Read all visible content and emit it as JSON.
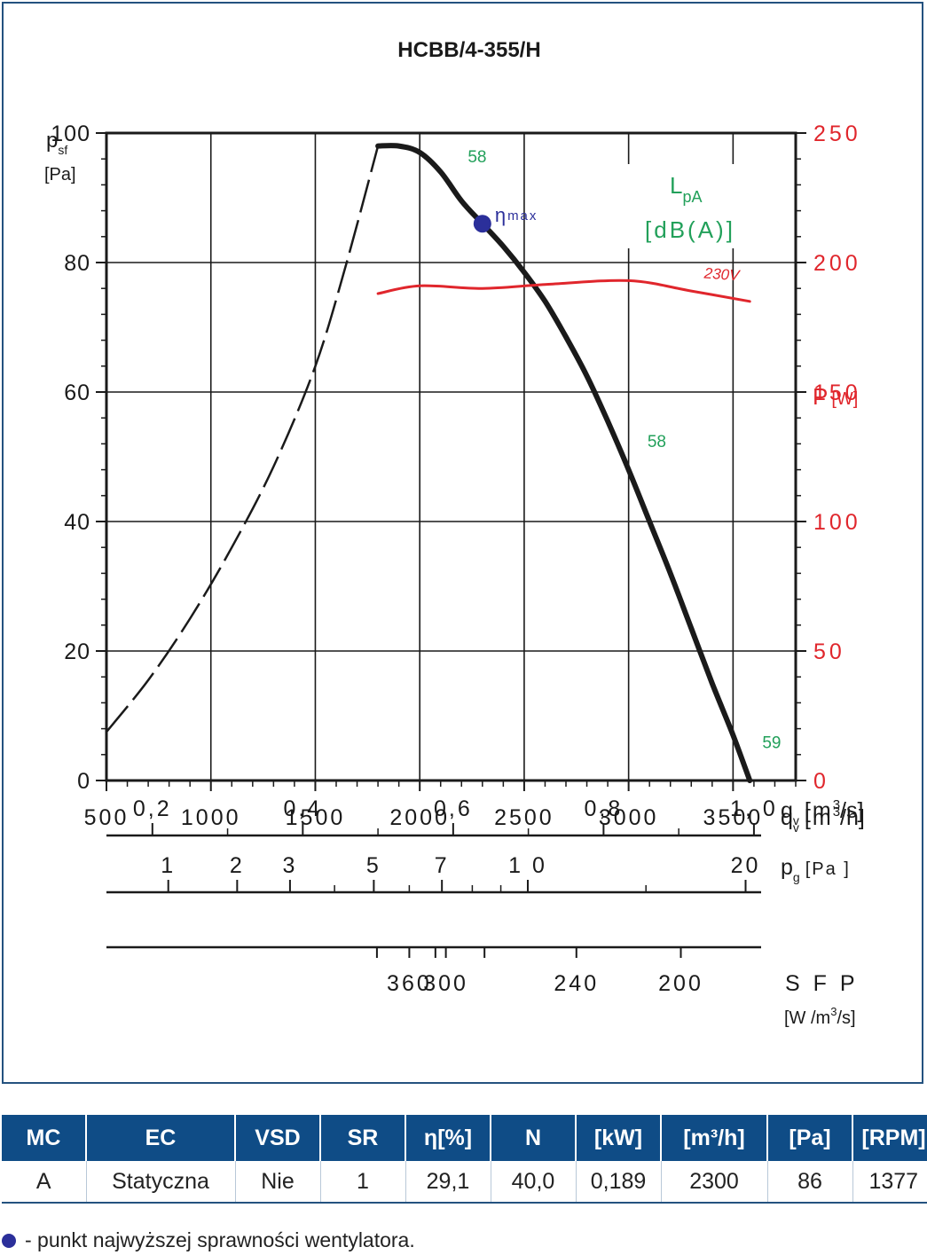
{
  "chart_data": {
    "type": "line",
    "title": "HCBB/4-355/H",
    "y_left": {
      "label": "p",
      "label_sub": "sf",
      "unit": "[Pa]",
      "lim": [
        0,
        100
      ],
      "ticks": [
        "0",
        "20",
        "40",
        "60",
        "80",
        "100"
      ]
    },
    "y_right": {
      "label": "P",
      "unit": "[W]",
      "lim": [
        0,
        250
      ],
      "ticks": [
        "0",
        "50",
        "100",
        "150",
        "200",
        "250"
      ],
      "color": "#e0262c"
    },
    "x": {
      "lim": [
        500,
        3800
      ],
      "ticks": [
        "500",
        "1000",
        "1500",
        "2000",
        "2500",
        "3000",
        "3500"
      ],
      "label": "q",
      "label_sub": "v",
      "unit": "[m",
      "unit_sup": "3",
      "unit_tail": "/h]"
    },
    "grid": true,
    "series": [
      {
        "role": "pressure-stable",
        "points": [
          [
            1800,
            98
          ],
          [
            1900,
            98
          ],
          [
            2000,
            97
          ],
          [
            2100,
            94
          ],
          [
            2200,
            89.5
          ],
          [
            2300,
            86
          ],
          [
            2400,
            82.5
          ],
          [
            2500,
            78.5
          ],
          [
            2600,
            74
          ],
          [
            2700,
            68.5
          ],
          [
            2800,
            62.5
          ],
          [
            2900,
            55.5
          ],
          [
            3000,
            48
          ],
          [
            3100,
            40
          ],
          [
            3200,
            32
          ],
          [
            3300,
            23.5
          ],
          [
            3400,
            15
          ],
          [
            3500,
            7
          ],
          [
            3580,
            0
          ]
        ],
        "color": "#1a1a1a"
      },
      {
        "role": "pressure-unstable",
        "dashed": true,
        "points": [
          [
            500,
            7.5
          ],
          [
            700,
            15.5
          ],
          [
            900,
            25
          ],
          [
            1100,
            36
          ],
          [
            1300,
            48.5
          ],
          [
            1500,
            64
          ],
          [
            1650,
            80
          ],
          [
            1800,
            98
          ]
        ],
        "color": "#1a1a1a"
      },
      {
        "name": "230V",
        "axis": "right",
        "points": [
          [
            1800,
            188
          ],
          [
            2000,
            191
          ],
          [
            2300,
            190
          ],
          [
            2600,
            191.5
          ],
          [
            3000,
            193
          ],
          [
            3300,
            189
          ],
          [
            3580,
            185
          ]
        ],
        "color": "#e0262c"
      }
    ],
    "annotations": {
      "lpa_title": "L",
      "lpa_title_sub": "pA",
      "lpa_unit": "[dB(A)]",
      "lpa_color": "#22a05a",
      "noise_labels": [
        {
          "text": "58",
          "x": 2230,
          "y": 95.5
        },
        {
          "text": "58",
          "x": 3090,
          "y": 51.5
        },
        {
          "text": "59",
          "x": 3640,
          "y": 5
        }
      ],
      "eta_label": "η",
      "eta_sub": "max",
      "eta_point": {
        "x": 2300,
        "y": 86
      },
      "eta_color": "#2b2f9a",
      "power_series_label": "230V"
    },
    "secondary_axes": [
      {
        "label": "q",
        "label_sub": "v",
        "unit": "[m",
        "unit_sup": "3",
        "unit_tail": "/s]",
        "ticks": [
          {
            "v": 0.2,
            "t": "0,2"
          },
          {
            "v": 0.4,
            "t": "0,4"
          },
          {
            "v": 0.6,
            "t": "0,6"
          },
          {
            "v": 0.8,
            "t": "0,8"
          },
          {
            "v": 1.0,
            "t": "1, 0"
          }
        ],
        "minor": [
          0.3,
          0.5,
          0.7,
          0.9
        ]
      },
      {
        "label": "p",
        "label_sub": "g",
        "unit": "[Pa ]",
        "ticks": [
          {
            "v": 1,
            "t": "1"
          },
          {
            "v": 2,
            "t": "2"
          },
          {
            "v": 3,
            "t": "3"
          },
          {
            "v": 5,
            "t": "5"
          },
          {
            "v": 7,
            "t": "7"
          },
          {
            "v": 10,
            "t": "1 0"
          },
          {
            "v": 20,
            "t": "20"
          }
        ],
        "minor": [
          4,
          6,
          8,
          9,
          15
        ]
      },
      {
        "label": "S F P",
        "unit": "[W /m",
        "unit_sup": "3",
        "unit_tail": "/s]",
        "ticks": [
          {
            "q": 1795,
            "t": ""
          },
          {
            "q": 1950,
            "t": "360"
          },
          {
            "q": 2075,
            "t": ""
          },
          {
            "q": 2125,
            "t": "300"
          },
          {
            "q": 2310,
            "t": ""
          },
          {
            "q": 2750,
            "t": "240"
          },
          {
            "q": 3250,
            "t": "200"
          }
        ],
        "minor": []
      }
    ]
  },
  "table": {
    "headers": [
      "MC",
      "EC",
      "VSD",
      "SR",
      "η[%]",
      "N",
      "[kW]",
      "[m³/h]",
      "[Pa]",
      "[RPM]"
    ],
    "row": [
      "A",
      "Statyczna",
      "Nie",
      "1",
      "29,1",
      "40,0",
      "0,189",
      "2300",
      "86",
      "1377"
    ],
    "header_color": "#0f4c86"
  },
  "footnote": {
    "text": "- punkt najwyższej sprawności wentylatora."
  }
}
